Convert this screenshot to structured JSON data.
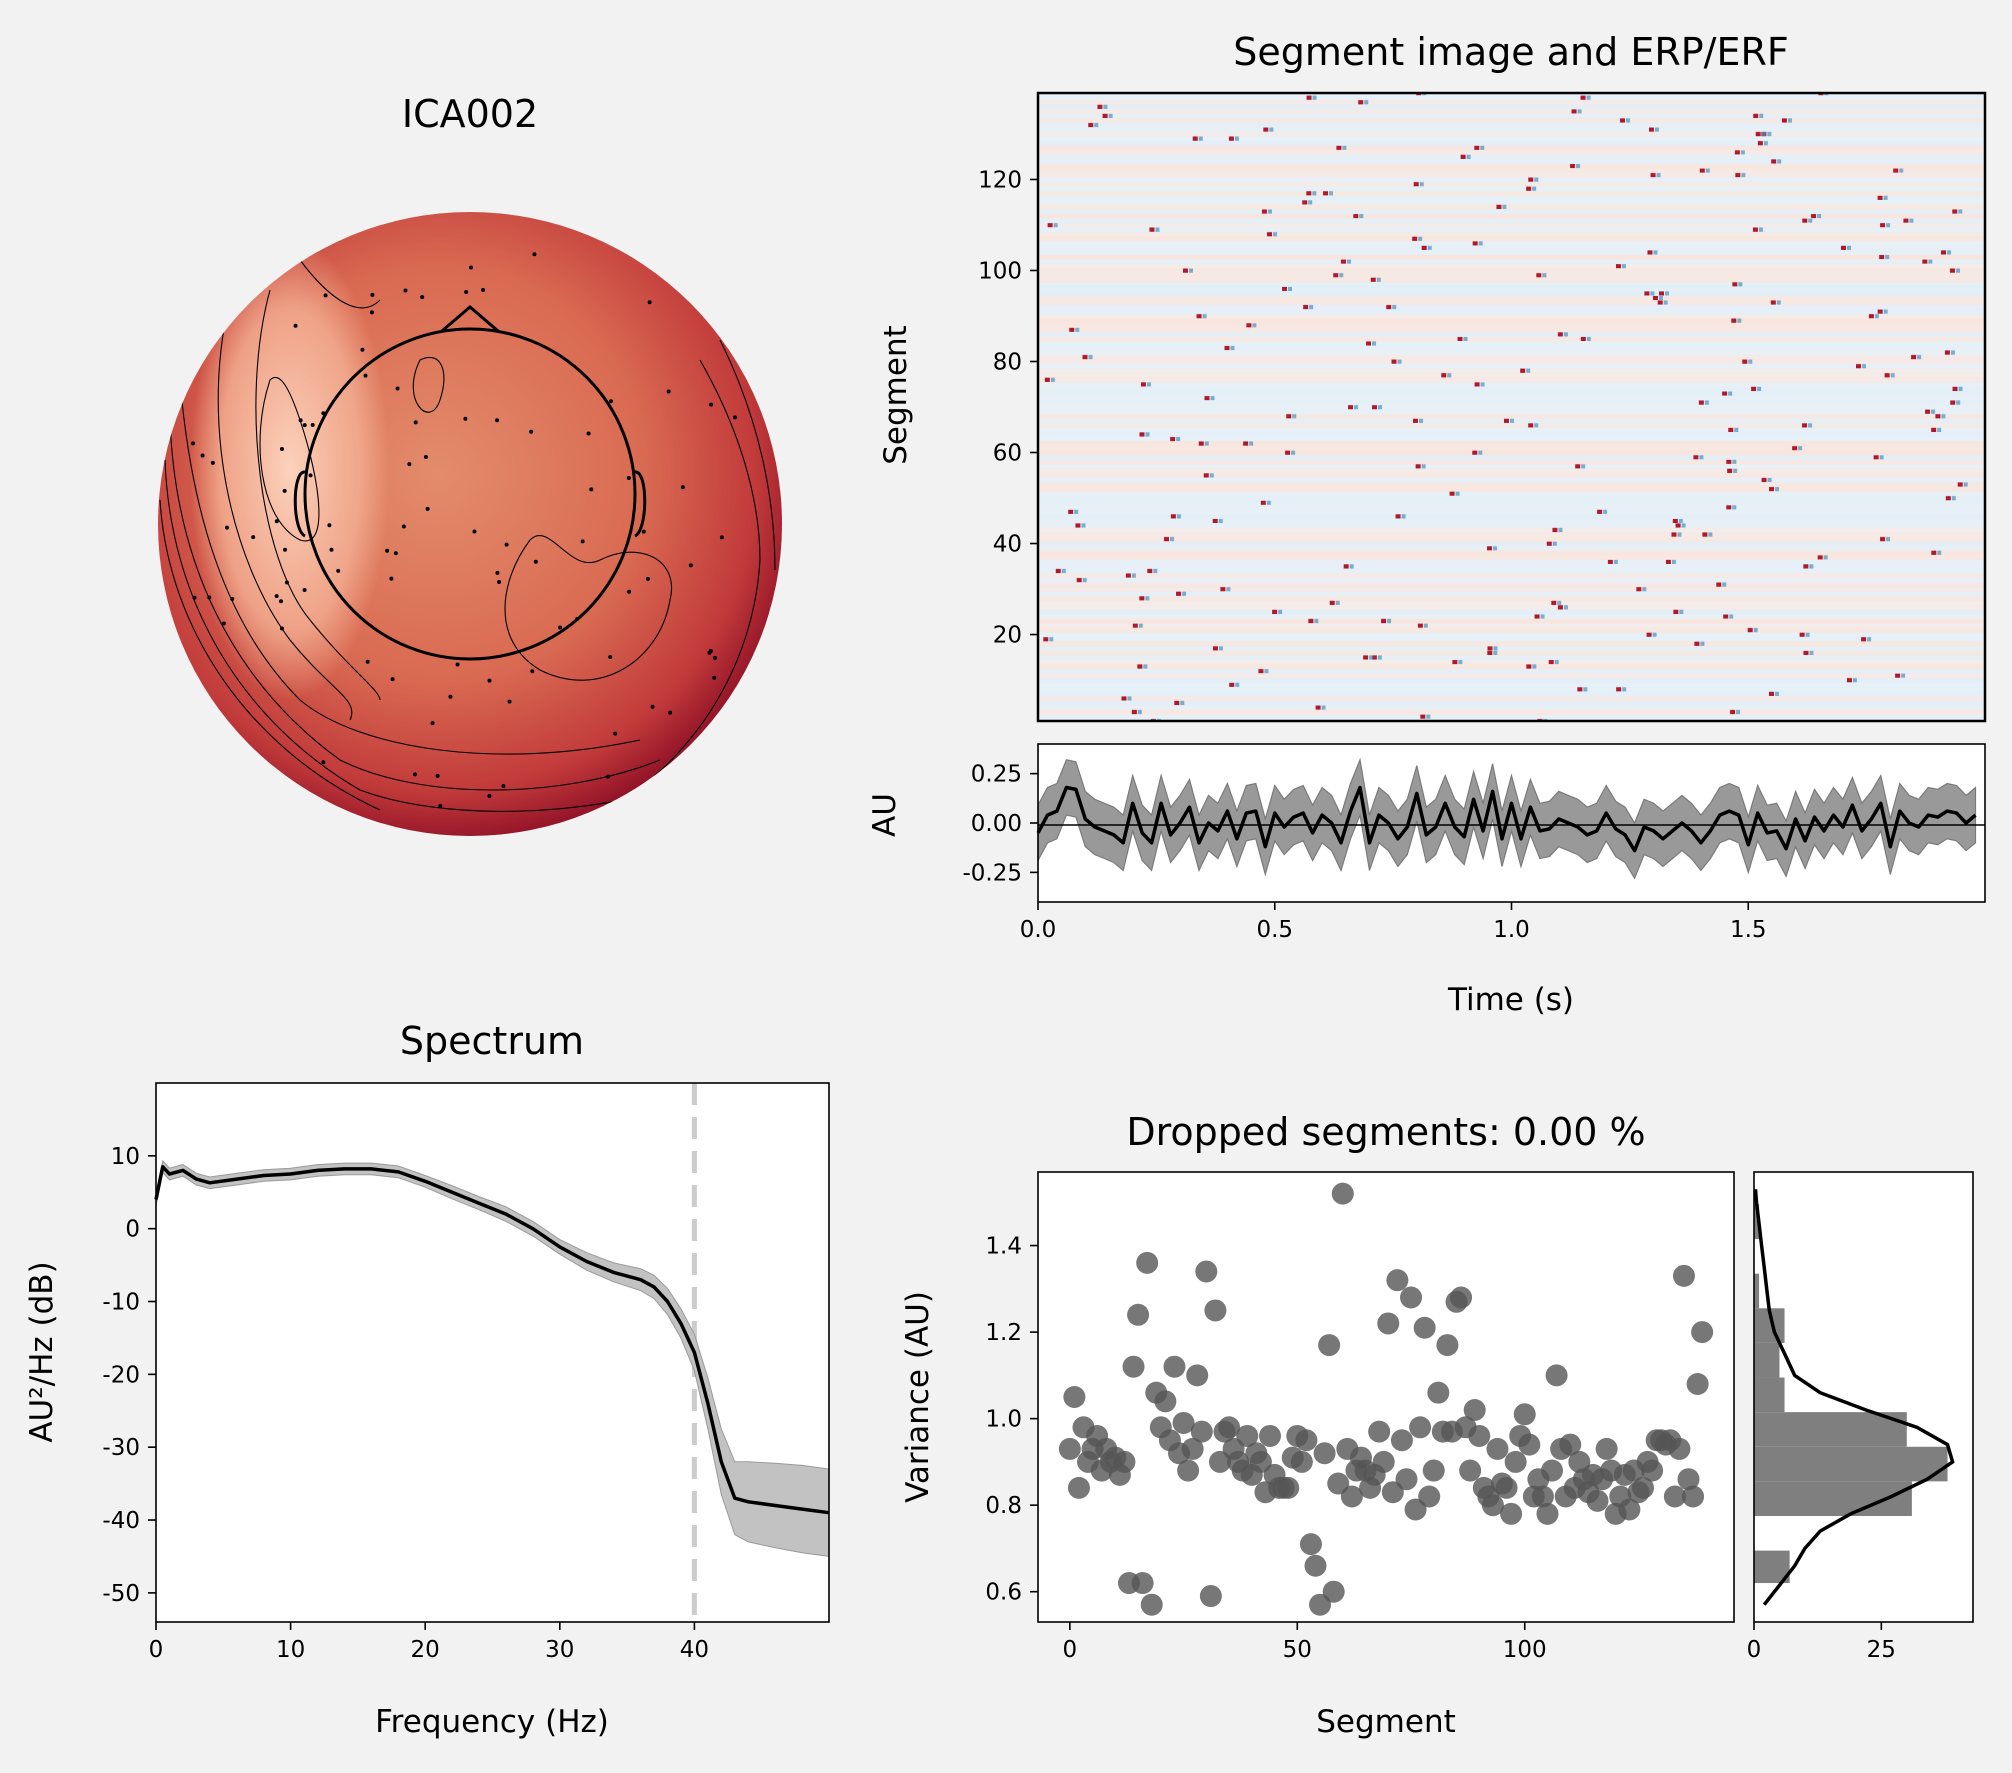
{
  "colors": {
    "background": "#f2f2f2",
    "ink": "#000000",
    "scatter": "#555555",
    "band": "#bdbdbd",
    "dash": "#cccccc"
  },
  "topomap": {
    "title": "ICA002"
  },
  "segment_image": {
    "title": "Segment image and ERP/ERF",
    "ylabel": "Segment",
    "yticks": [
      "20",
      "40",
      "60",
      "80",
      "100",
      "120"
    ]
  },
  "erp": {
    "ylabel": "AU",
    "yticks": [
      "0.25",
      "0.00",
      "-0.25"
    ],
    "xticks": [
      "0.0",
      "0.5",
      "1.0",
      "1.5"
    ],
    "xlabel": "Time (s)"
  },
  "spectrum": {
    "title": "Spectrum",
    "xlabel": "Frequency (Hz)",
    "ylabel": "AU²/Hz (dB)",
    "xticks": [
      "0",
      "10",
      "20",
      "30",
      "40"
    ],
    "yticks": [
      "10",
      "0",
      "-10",
      "-20",
      "-30",
      "-40",
      "-50"
    ]
  },
  "dropped": {
    "title": "Dropped segments: 0.00 %",
    "xlabel": "Segment",
    "ylabel": "Variance (AU)",
    "xticks": [
      "0",
      "50",
      "100"
    ],
    "yticks": [
      "0.6",
      "0.8",
      "1.0",
      "1.2",
      "1.4"
    ],
    "hist_xticks": [
      "0",
      "25"
    ]
  },
  "chart_data": [
    {
      "type": "heatmap",
      "title": "Segment image and ERP/ERF",
      "ylabel": "Segment",
      "ylim": [
        1,
        139
      ],
      "xlim": [
        0,
        2.0
      ],
      "note": "segments x time image of component ICA002, diverging red-blue colormap"
    },
    {
      "type": "line",
      "xlabel": "Time (s)",
      "ylabel": "AU",
      "xlim": [
        0,
        2.0
      ],
      "ylim": [
        -0.4,
        0.4
      ],
      "x": [
        0.0,
        0.02,
        0.04,
        0.06,
        0.08,
        0.1,
        0.12,
        0.14,
        0.16,
        0.18,
        0.2,
        0.22,
        0.24,
        0.26,
        0.28,
        0.3,
        0.32,
        0.34,
        0.36,
        0.38,
        0.4,
        0.42,
        0.44,
        0.46,
        0.48,
        0.5,
        0.52,
        0.54,
        0.56,
        0.58,
        0.6,
        0.62,
        0.64,
        0.66,
        0.68,
        0.7,
        0.72,
        0.74,
        0.76,
        0.78,
        0.8,
        0.82,
        0.84,
        0.86,
        0.88,
        0.9,
        0.92,
        0.94,
        0.96,
        0.98,
        1.0,
        1.02,
        1.04,
        1.06,
        1.08,
        1.1,
        1.12,
        1.14,
        1.16,
        1.18,
        1.2,
        1.22,
        1.24,
        1.26,
        1.28,
        1.3,
        1.32,
        1.34,
        1.36,
        1.38,
        1.4,
        1.42,
        1.44,
        1.46,
        1.48,
        1.5,
        1.52,
        1.54,
        1.56,
        1.58,
        1.6,
        1.62,
        1.64,
        1.66,
        1.68,
        1.7,
        1.72,
        1.74,
        1.76,
        1.78,
        1.8,
        1.82,
        1.84,
        1.86,
        1.88,
        1.9,
        1.92,
        1.94,
        1.96,
        1.98
      ],
      "y": [
        -0.05,
        0.04,
        0.06,
        0.18,
        0.17,
        0.02,
        -0.02,
        -0.04,
        -0.06,
        -0.1,
        0.1,
        -0.05,
        -0.1,
        0.1,
        -0.06,
        0.0,
        0.08,
        -0.1,
        0.0,
        -0.04,
        0.06,
        -0.08,
        0.05,
        0.06,
        -0.12,
        0.05,
        -0.02,
        0.03,
        0.05,
        -0.05,
        0.04,
        0.0,
        -0.1,
        0.06,
        0.18,
        -0.1,
        0.04,
        0.0,
        -0.08,
        -0.02,
        0.15,
        -0.06,
        -0.02,
        0.1,
        -0.02,
        -0.07,
        0.12,
        -0.04,
        0.16,
        -0.08,
        0.1,
        -0.08,
        0.08,
        -0.04,
        -0.03,
        0.02,
        0.0,
        -0.02,
        -0.06,
        -0.04,
        0.05,
        -0.03,
        -0.06,
        -0.14,
        -0.02,
        -0.04,
        -0.08,
        -0.04,
        0.0,
        -0.04,
        -0.1,
        -0.04,
        0.04,
        0.06,
        0.04,
        -0.11,
        0.05,
        -0.05,
        -0.04,
        -0.13,
        0.02,
        -0.09,
        0.03,
        -0.04,
        0.04,
        -0.02,
        0.09,
        -0.04,
        0.02,
        0.1,
        -0.12,
        0.06,
        0.0,
        -0.02,
        0.04,
        0.03,
        0.06,
        0.05,
        0.0,
        0.04
      ],
      "band_halfwidth": 0.14,
      "zero_line": true
    },
    {
      "type": "line",
      "title": "Spectrum",
      "xlabel": "Frequency (Hz)",
      "ylabel": "AU²/Hz (dB)",
      "xlim": [
        0,
        50
      ],
      "ylim": [
        -54,
        20
      ],
      "x": [
        0,
        0.5,
        1,
        2,
        3,
        4,
        6,
        8,
        10,
        12,
        14,
        16,
        18,
        20,
        22,
        24,
        26,
        28,
        30,
        32,
        34,
        36,
        37,
        38,
        39,
        40,
        41,
        42,
        43,
        44,
        46,
        48,
        50
      ],
      "y": [
        4,
        8.5,
        7.5,
        8,
        6.8,
        6.3,
        6.8,
        7.3,
        7.5,
        8,
        8.2,
        8.2,
        7.8,
        6.5,
        5,
        3.5,
        2,
        0,
        -2.5,
        -4.5,
        -6,
        -7,
        -8,
        -10,
        -13,
        -17,
        -24,
        -32,
        -37,
        -37.5,
        -38,
        -38.5,
        -39
      ],
      "band_halfwidth": [
        0.8,
        0.8,
        0.8,
        0.8,
        0.8,
        0.8,
        0.8,
        0.8,
        0.8,
        0.8,
        0.8,
        0.8,
        0.8,
        0.8,
        0.9,
        0.9,
        1,
        1,
        1,
        1.2,
        1.3,
        1.5,
        1.6,
        1.8,
        2,
        2.5,
        3.5,
        4.5,
        5,
        5.5,
        5.8,
        6,
        6
      ],
      "vline_x": 40
    },
    {
      "type": "scatter",
      "title": "Dropped segments: 0.00 %",
      "xlabel": "Segment",
      "ylabel": "Variance (AU)",
      "xlim": [
        -7,
        146
      ],
      "ylim": [
        0.53,
        1.57
      ],
      "x": [
        0,
        1,
        2,
        3,
        4,
        5,
        6,
        7,
        8,
        9,
        10,
        11,
        12,
        13,
        14,
        15,
        16,
        17,
        18,
        19,
        20,
        21,
        22,
        23,
        24,
        25,
        26,
        27,
        28,
        29,
        30,
        31,
        32,
        33,
        34,
        35,
        36,
        37,
        38,
        39,
        40,
        41,
        42,
        43,
        44,
        45,
        46,
        47,
        48,
        49,
        50,
        51,
        52,
        53,
        54,
        55,
        56,
        57,
        58,
        59,
        60,
        61,
        62,
        63,
        64,
        65,
        66,
        67,
        68,
        69,
        70,
        71,
        72,
        73,
        74,
        75,
        76,
        77,
        78,
        79,
        80,
        81,
        82,
        83,
        84,
        85,
        86,
        87,
        88,
        89,
        90,
        91,
        92,
        93,
        94,
        95,
        96,
        97,
        98,
        99,
        100,
        101,
        102,
        103,
        104,
        105,
        106,
        107,
        108,
        109,
        110,
        111,
        112,
        113,
        114,
        115,
        116,
        117,
        118,
        119,
        120,
        121,
        122,
        123,
        124,
        125,
        126,
        127,
        128,
        129,
        130,
        131,
        132,
        133,
        134,
        135,
        136,
        137,
        138,
        139
      ],
      "y": [
        0.93,
        1.05,
        0.84,
        0.98,
        0.9,
        0.93,
        0.96,
        0.88,
        0.93,
        0.9,
        0.91,
        0.87,
        0.9,
        0.62,
        1.12,
        1.24,
        0.62,
        1.36,
        0.57,
        1.06,
        0.98,
        1.04,
        0.95,
        1.12,
        0.92,
        0.99,
        0.88,
        0.93,
        1.1,
        0.97,
        1.34,
        0.59,
        1.25,
        0.9,
        0.97,
        0.98,
        0.93,
        0.9,
        0.88,
        0.96,
        0.87,
        0.92,
        0.9,
        0.83,
        0.96,
        0.87,
        0.84,
        0.84,
        0.84,
        0.91,
        0.96,
        0.9,
        0.95,
        0.71,
        0.66,
        0.57,
        0.92,
        1.17,
        0.6,
        0.85,
        1.52,
        0.93,
        0.82,
        0.88,
        0.91,
        0.88,
        0.84,
        0.87,
        0.97,
        0.9,
        1.22,
        0.83,
        1.32,
        0.95,
        0.86,
        1.28,
        0.79,
        0.98,
        1.21,
        0.82,
        0.88,
        1.06,
        0.97,
        1.17,
        0.97,
        1.27,
        1.28,
        0.98,
        0.88,
        1.02,
        0.96,
        0.84,
        0.82,
        0.8,
        0.93,
        0.85,
        0.84,
        0.78,
        0.9,
        0.96,
        1.01,
        0.94,
        0.82,
        0.86,
        0.82,
        0.78,
        0.88,
        1.1,
        0.93,
        0.82,
        0.94,
        0.84,
        0.9,
        0.86,
        0.83,
        0.87,
        0.81,
        0.86,
        0.93,
        0.88,
        0.78,
        0.82,
        0.87,
        0.79,
        0.88,
        0.83,
        0.84,
        0.9,
        0.88,
        0.95,
        0.95,
        0.94,
        0.95,
        0.82,
        0.93,
        1.33,
        0.86,
        0.82,
        1.08,
        1.2
      ]
    },
    {
      "type": "bar",
      "orientation": "horizontal",
      "xlim": [
        0,
        43
      ],
      "bins": [
        0.62,
        0.695,
        0.775,
        0.855,
        0.935,
        1.015,
        1.095,
        1.175,
        1.255,
        1.335,
        1.415,
        1.495
      ],
      "counts": [
        7,
        0,
        31,
        38,
        30,
        6,
        5,
        6,
        1,
        0,
        1
      ],
      "kde": {
        "y": [
          0.57,
          0.6,
          0.63,
          0.66,
          0.7,
          0.74,
          0.78,
          0.82,
          0.86,
          0.9,
          0.94,
          0.98,
          1.02,
          1.06,
          1.1,
          1.15,
          1.2,
          1.25,
          1.3,
          1.35,
          1.4,
          1.45,
          1.5,
          1.53
        ],
        "x": [
          2,
          4,
          6,
          8,
          10,
          13,
          19,
          27,
          34,
          39,
          38,
          32,
          22,
          13,
          8,
          6,
          4,
          3,
          2.5,
          2,
          1.5,
          1,
          0.5,
          0.3
        ]
      }
    }
  ]
}
